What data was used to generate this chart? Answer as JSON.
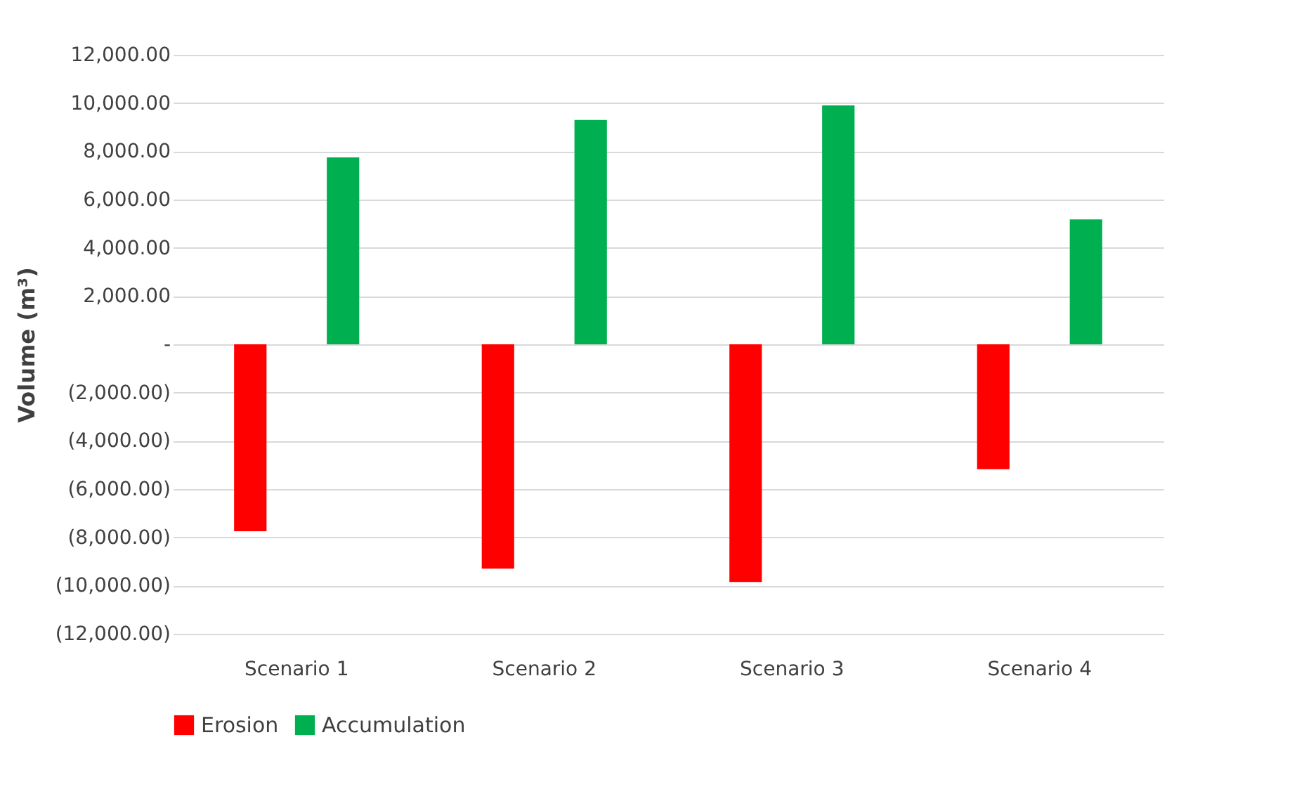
{
  "chart_data": {
    "type": "bar",
    "ylabel": "Volume (m³)",
    "categories": [
      "Scenario 1",
      "Scenario 2",
      "Scenario 3",
      "Scenario 4"
    ],
    "series": [
      {
        "name": "Erosion",
        "color": "#ff0000",
        "values": [
          -7750,
          -9300,
          -9850,
          -5180
        ]
      },
      {
        "name": "Accumulation",
        "color": "#00b050",
        "values": [
          7750,
          9300,
          9900,
          5180
        ]
      }
    ],
    "ylim": [
      -12000,
      12000
    ],
    "yticks": [
      {
        "value": -12000,
        "label": "(12,000.00)"
      },
      {
        "value": -10000,
        "label": "(10,000.00)"
      },
      {
        "value": -8000,
        "label": "(8,000.00)"
      },
      {
        "value": -6000,
        "label": "(6,000.00)"
      },
      {
        "value": -4000,
        "label": "(4,000.00)"
      },
      {
        "value": -2000,
        "label": "(2,000.00)"
      },
      {
        "value": 0,
        "label": "-"
      },
      {
        "value": 2000,
        "label": "2,000.00"
      },
      {
        "value": 4000,
        "label": "4,000.00"
      },
      {
        "value": 6000,
        "label": "6,000.00"
      },
      {
        "value": 8000,
        "label": "8,000.00"
      },
      {
        "value": 10000,
        "label": "10,000.00"
      },
      {
        "value": 12000,
        "label": "12,000.00"
      }
    ],
    "grid": "y",
    "legend": "bottom"
  }
}
